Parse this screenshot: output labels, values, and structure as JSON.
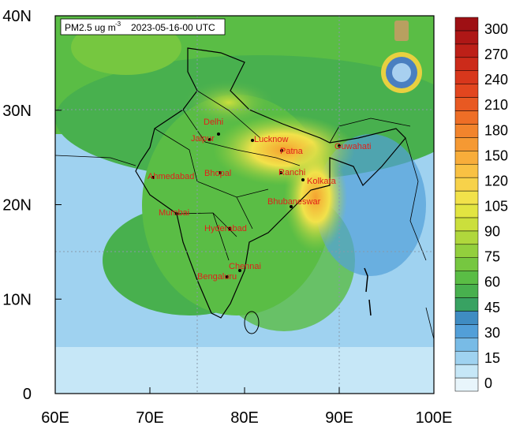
{
  "map": {
    "title": {
      "quantity": "PM2.5 ug m",
      "superscript": "-3",
      "time": "2023-05-16-00 UTC"
    },
    "lon_labels": [
      "60E",
      "70E",
      "80E",
      "90E",
      "100E"
    ],
    "lat_labels": [
      "0",
      "10N",
      "20N",
      "30N",
      "40N"
    ],
    "cities": [
      "Delhi",
      "Jaipur",
      "Lucknow",
      "Patna",
      "Guwahati",
      "Ahmedabad",
      "Bhopal",
      "Ranchi",
      "Kolkata",
      "Mumbai",
      "Bhubaneswar",
      "Hyderabad",
      "Chennai",
      "Bengaluru"
    ],
    "colorbar": {
      "ticks": [
        0,
        15,
        30,
        45,
        60,
        75,
        90,
        105,
        120,
        150,
        180,
        210,
        240,
        270,
        300
      ],
      "colors": [
        "#e8f5fb",
        "#c6e7f7",
        "#9fd2f0",
        "#78bbe6",
        "#529fd8",
        "#3f8cc2",
        "#38a262",
        "#48b04e",
        "#5abd45",
        "#76c740",
        "#93cf3d",
        "#b0d73c",
        "#cbdf3c",
        "#e2e541",
        "#f2e24a",
        "#f7d24a",
        "#f9c143",
        "#f8ad3a",
        "#f59933",
        "#f2842c",
        "#ee6e26",
        "#e85922",
        "#e2461f",
        "#d8371c",
        "#cc2b1a",
        "#bd2018",
        "#ae1716",
        "#9e1014"
      ]
    }
  }
}
